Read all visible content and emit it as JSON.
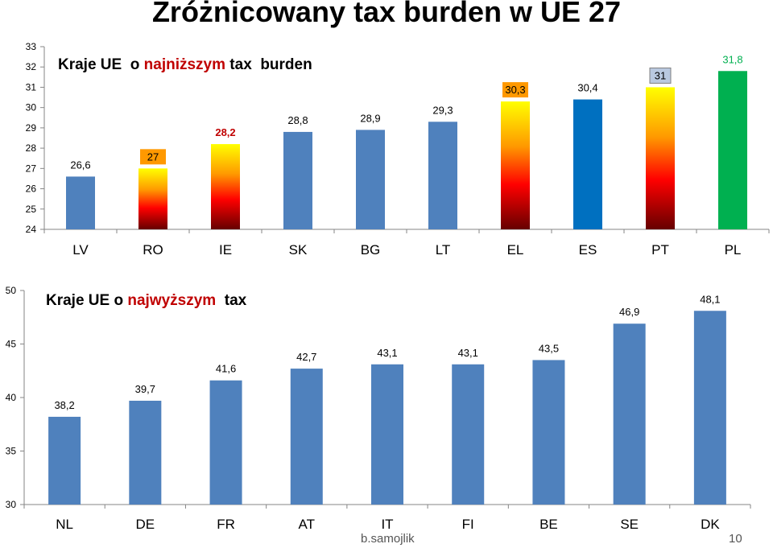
{
  "slide": {
    "title": "Zróżnicowany tax burden w UE 27",
    "author": "b.samojlik",
    "page_number": "10"
  },
  "colors": {
    "default_bar": "#4f81bd",
    "es_bar": "#0070c0",
    "pl_bar": "#00b050",
    "pl_label": "#00b050",
    "highlight_text": "#c00000",
    "flame_top": "#ffff00",
    "flame_mid": "#ff9900",
    "flame_red": "#ff0000",
    "flame_dark": "#660000"
  },
  "chart_data": [
    {
      "type": "bar",
      "subtitle_parts": [
        "Kraje UE  o ",
        "najniższym",
        " tax  burden"
      ],
      "categories": [
        "LV",
        "RO",
        "IE",
        "SK",
        "BG",
        "LT",
        "EL",
        "ES",
        "PT",
        "PL"
      ],
      "values": [
        26.6,
        27,
        28.2,
        28.8,
        28.9,
        29.3,
        30.3,
        30.4,
        31,
        31.8
      ],
      "data_labels": [
        "26,6",
        "27",
        "28,2",
        "28,8",
        "28,9",
        "29,3",
        "30,3",
        "30,4",
        "31",
        "31,8"
      ],
      "bar_styles": [
        "default",
        "flame",
        "flame",
        "default",
        "default",
        "default",
        "flame",
        "es",
        "flame",
        "pl"
      ],
      "label_styles": [
        "plain",
        "boxed-orange",
        "red",
        "plain",
        "plain",
        "plain",
        "boxed-orange",
        "plain",
        "boxed-gray",
        "green"
      ],
      "ylim": [
        24,
        33
      ],
      "yticks": [
        24,
        25,
        26,
        27,
        28,
        29,
        30,
        31,
        32,
        33
      ]
    },
    {
      "type": "bar",
      "subtitle_parts": [
        "Kraje UE o ",
        "najwyższym",
        "  tax"
      ],
      "categories": [
        "NL",
        "DE",
        "FR",
        "AT",
        "IT",
        "FI",
        "BE",
        "SE",
        "DK"
      ],
      "values": [
        38.2,
        39.7,
        41.6,
        42.7,
        43.1,
        43.1,
        43.5,
        46.9,
        48.1
      ],
      "data_labels": [
        "38,2",
        "39,7",
        "41,6",
        "42,7",
        "43,1",
        "43,1",
        "43,5",
        "46,9",
        "48,1"
      ],
      "ylim": [
        30,
        50
      ],
      "yticks": [
        30,
        35,
        40,
        45,
        50
      ]
    }
  ]
}
